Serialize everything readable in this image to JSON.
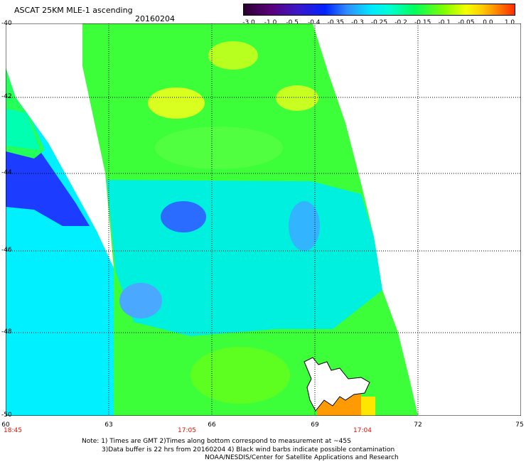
{
  "header": {
    "title": "ASCAT 25KM MLE-1 ascending",
    "date": "20160204"
  },
  "colorbar": {
    "ticks": [
      "-3.0",
      "-1.0",
      "-0.5",
      "-0.4",
      "-0.35",
      "-0.3",
      "-0.25",
      "-0.2",
      "-0.15",
      "-0.1",
      "-0.05",
      "0.0",
      "1.0"
    ]
  },
  "axes": {
    "lat_labels": [
      "-40",
      "-42",
      "-44",
      "-46",
      "-48",
      "-50"
    ],
    "lon_labels": [
      "60",
      "63",
      "66",
      "69",
      "72",
      "75"
    ],
    "time_labels": [
      "18:45",
      "17:05",
      "17:04"
    ]
  },
  "notes": [
    "Note: 1) Times are GMT 2)Times along bottom correspond to measurement at ~45S",
    "3)Data buffer is 22 hrs from 20160204 4) Black wind barbs indicate possible contamination",
    "NOAA/NESDIS/Center for Satellite Applications and Research"
  ]
}
